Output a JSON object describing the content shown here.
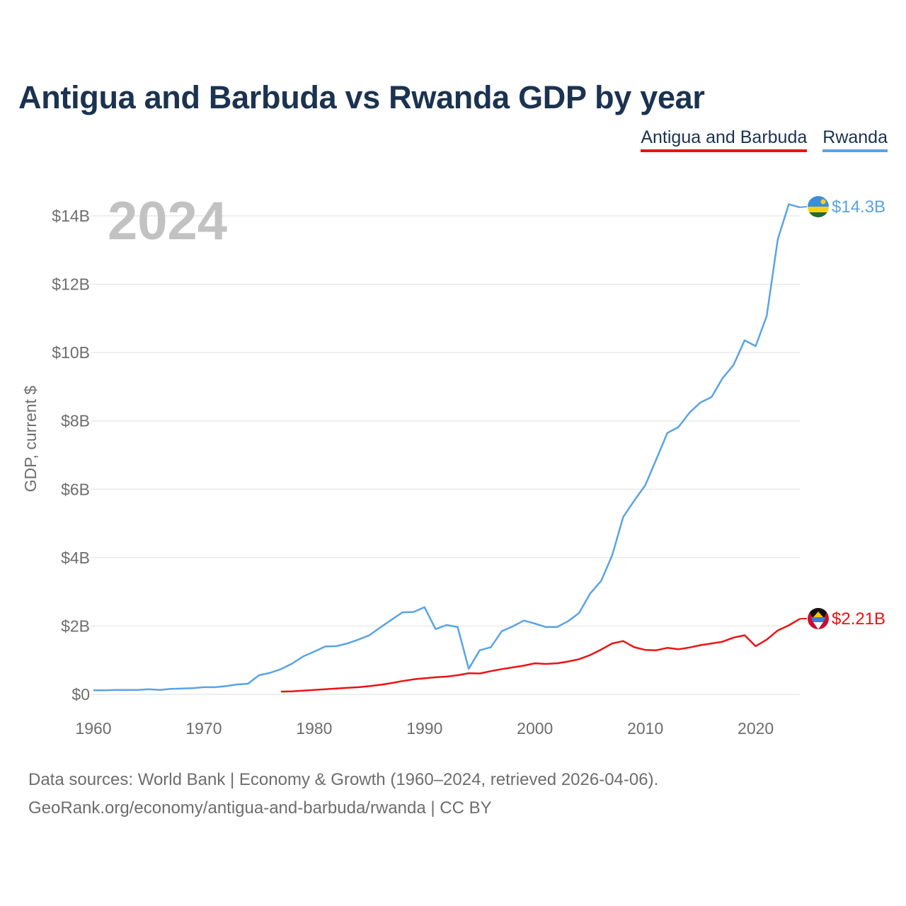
{
  "chart_data": {
    "type": "line",
    "title": "Antigua and Barbuda vs Rwanda GDP by year",
    "ylabel": "GDP, current $",
    "xlabel": "",
    "year_label": "2024",
    "xlim": [
      1960,
      2024
    ],
    "ylim": [
      0,
      14
    ],
    "x_ticks": [
      "1960",
      "1970",
      "1980",
      "1990",
      "2000",
      "2010",
      "2020"
    ],
    "y_ticks": [
      "$0",
      "$2B",
      "$4B",
      "$6B",
      "$8B",
      "$10B",
      "$12B",
      "$14B"
    ],
    "grid": true,
    "legend_position": "top-right",
    "series": [
      {
        "name": "Antigua and Barbuda",
        "color": "#ee1111",
        "end_label": "$2.21B",
        "flag_icon": "antigua-flag-icon",
        "x": [
          1977,
          1978,
          1979,
          1980,
          1981,
          1982,
          1983,
          1984,
          1985,
          1986,
          1987,
          1988,
          1989,
          1990,
          1991,
          1992,
          1993,
          1994,
          1995,
          1996,
          1997,
          1998,
          1999,
          2000,
          2001,
          2002,
          2003,
          2004,
          2005,
          2006,
          2007,
          2008,
          2009,
          2010,
          2011,
          2012,
          2013,
          2014,
          2015,
          2016,
          2017,
          2018,
          2019,
          2020,
          2021,
          2022,
          2023,
          2024
        ],
        "values": [
          0.08,
          0.09,
          0.11,
          0.13,
          0.15,
          0.17,
          0.19,
          0.21,
          0.24,
          0.28,
          0.33,
          0.39,
          0.44,
          0.47,
          0.5,
          0.52,
          0.56,
          0.62,
          0.61,
          0.68,
          0.74,
          0.79,
          0.84,
          0.91,
          0.89,
          0.91,
          0.96,
          1.03,
          1.15,
          1.31,
          1.49,
          1.56,
          1.38,
          1.3,
          1.29,
          1.36,
          1.32,
          1.37,
          1.44,
          1.49,
          1.54,
          1.66,
          1.73,
          1.41,
          1.6,
          1.87,
          2.02,
          2.21
        ]
      },
      {
        "name": "Rwanda",
        "color": "#5aa3e4",
        "end_label": "$14.3B",
        "flag_icon": "rwanda-flag-icon",
        "x": [
          1960,
          1961,
          1962,
          1963,
          1964,
          1965,
          1966,
          1967,
          1968,
          1969,
          1970,
          1971,
          1972,
          1973,
          1974,
          1975,
          1976,
          1977,
          1978,
          1979,
          1980,
          1981,
          1982,
          1983,
          1984,
          1985,
          1986,
          1987,
          1988,
          1989,
          1990,
          1991,
          1992,
          1993,
          1994,
          1995,
          1996,
          1997,
          1998,
          1999,
          2000,
          2001,
          2002,
          2003,
          2004,
          2005,
          2006,
          2007,
          2008,
          2009,
          2010,
          2011,
          2012,
          2013,
          2014,
          2015,
          2016,
          2017,
          2018,
          2019,
          2020,
          2021,
          2022,
          2023,
          2024
        ],
        "values": [
          0.12,
          0.12,
          0.13,
          0.13,
          0.13,
          0.15,
          0.13,
          0.16,
          0.17,
          0.18,
          0.21,
          0.21,
          0.24,
          0.29,
          0.31,
          0.56,
          0.63,
          0.74,
          0.9,
          1.11,
          1.25,
          1.4,
          1.41,
          1.49,
          1.6,
          1.73,
          1.96,
          2.18,
          2.4,
          2.41,
          2.55,
          1.91,
          2.03,
          1.97,
          0.75,
          1.29,
          1.38,
          1.85,
          1.99,
          2.16,
          2.07,
          1.97,
          1.97,
          2.14,
          2.38,
          2.95,
          3.32,
          4.07,
          5.19,
          5.67,
          6.12,
          6.88,
          7.65,
          7.82,
          8.24,
          8.54,
          8.7,
          9.25,
          9.64,
          10.36,
          10.19,
          11.07,
          13.31,
          14.34,
          14.25
        ]
      }
    ]
  },
  "legend": {
    "items": [
      "Antigua and Barbuda",
      "Rwanda"
    ]
  },
  "footer": {
    "line1": "Data sources: World Bank | Economy & Growth (1960–2024, retrieved 2026-04-06).",
    "line2": "GeoRank.org/economy/antigua-and-barbuda/rwanda | CC BY"
  }
}
